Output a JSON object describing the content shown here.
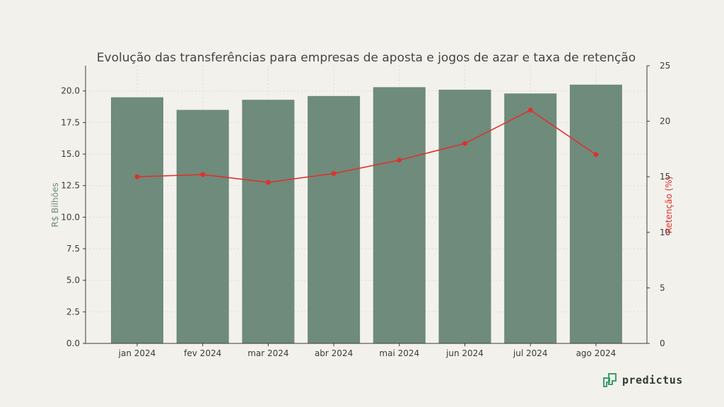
{
  "colors": {
    "background": "#f3f1ec",
    "bar": "#6e8b7c",
    "line": "#e0312b",
    "axis": "#3a3a3a",
    "grid": "#dcdcd4",
    "left_axis_title": "#6e8b7c",
    "right_axis_title": "#e0312b",
    "brand": "#3aa06a"
  },
  "brand": {
    "name": "predictus",
    "icon": "predictus-logo-icon"
  },
  "chart_data": {
    "type": "bar",
    "title": "Evolução das transferências para empresas de aposta e jogos de azar e taxa de retenção",
    "categories": [
      "jan 2024",
      "fev 2024",
      "mar 2024",
      "abr 2024",
      "mai 2024",
      "jun 2024",
      "jul 2024",
      "ago 2024"
    ],
    "series": [
      {
        "name": "R$ Bilhões",
        "type": "bar",
        "axis": "left",
        "values": [
          19.5,
          18.5,
          19.3,
          19.6,
          20.3,
          20.1,
          19.8,
          20.5
        ]
      },
      {
        "name": "Retenção (%)",
        "type": "line",
        "axis": "right",
        "values": [
          15.0,
          15.2,
          14.5,
          15.3,
          16.5,
          18.0,
          21.0,
          17.0
        ]
      }
    ],
    "ylabel": "R$ Bilhões",
    "ylim": [
      0,
      22
    ],
    "yticks": [
      "0.0",
      "2.5",
      "5.0",
      "7.5",
      "10.0",
      "12.5",
      "15.0",
      "17.5",
      "20.0"
    ],
    "y2label": "Retenção (%)",
    "y2lim": [
      0,
      25
    ],
    "y2ticks": [
      "0",
      "5",
      "10",
      "15",
      "20",
      "25"
    ],
    "grid": true
  }
}
